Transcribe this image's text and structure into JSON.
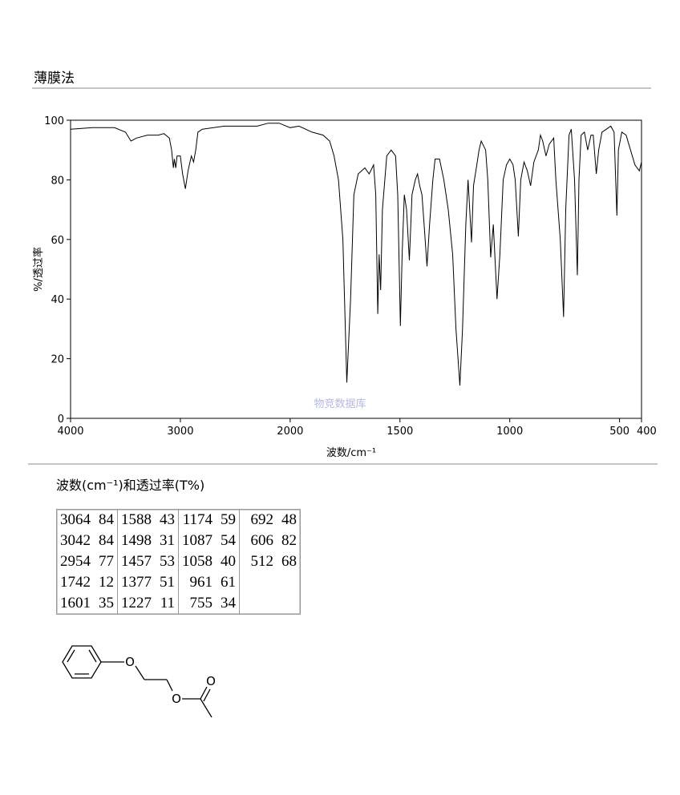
{
  "header": {
    "title": "薄膜法"
  },
  "chart_data": {
    "type": "line",
    "ylabel": "%/透过率",
    "xlabel": "波数/cm⁻¹",
    "watermark": "物竞数据库",
    "color": "#000000",
    "xlim": [
      4000,
      400
    ],
    "x_split": 2000,
    "xticks": [
      4000,
      3000,
      2000,
      1500,
      1000,
      500,
      400
    ],
    "ylim": [
      0,
      100
    ],
    "yticks": [
      0,
      20,
      40,
      60,
      80,
      100
    ],
    "x": [
      4000,
      3800,
      3600,
      3500,
      3450,
      3400,
      3300,
      3200,
      3150,
      3100,
      3080,
      3064,
      3055,
      3042,
      3030,
      3000,
      2980,
      2954,
      2930,
      2900,
      2880,
      2860,
      2840,
      2800,
      2600,
      2400,
      2300,
      2200,
      2100,
      2000,
      1960,
      1900,
      1850,
      1820,
      1800,
      1780,
      1760,
      1742,
      1725,
      1710,
      1690,
      1660,
      1640,
      1620,
      1610,
      1601,
      1595,
      1588,
      1580,
      1560,
      1540,
      1520,
      1510,
      1498,
      1490,
      1480,
      1470,
      1457,
      1445,
      1430,
      1420,
      1410,
      1400,
      1390,
      1377,
      1365,
      1350,
      1340,
      1320,
      1300,
      1280,
      1260,
      1245,
      1227,
      1215,
      1200,
      1190,
      1174,
      1165,
      1150,
      1140,
      1130,
      1110,
      1100,
      1087,
      1075,
      1058,
      1045,
      1030,
      1015,
      1000,
      985,
      975,
      961,
      950,
      935,
      920,
      905,
      890,
      870,
      860,
      850,
      835,
      820,
      800,
      790,
      770,
      755,
      745,
      730,
      720,
      705,
      692,
      685,
      675,
      660,
      645,
      630,
      620,
      606,
      595,
      580,
      560,
      540,
      525,
      512,
      505,
      490,
      470,
      450,
      430,
      410,
      400
    ],
    "values": [
      97,
      97.5,
      97.5,
      96,
      93,
      94,
      95,
      95,
      95.5,
      94,
      90,
      84,
      87,
      84,
      88,
      88,
      82,
      77,
      83,
      88,
      86,
      90,
      96,
      97,
      98,
      98,
      98,
      99,
      99,
      97.5,
      98,
      96,
      95,
      93,
      88,
      80,
      60,
      12,
      40,
      75,
      82,
      84,
      82,
      85,
      75,
      35,
      55,
      43,
      70,
      88,
      90,
      88,
      75,
      31,
      55,
      75,
      70,
      53,
      75,
      80,
      82,
      78,
      75,
      65,
      51,
      65,
      80,
      87,
      87,
      80,
      70,
      55,
      30,
      11,
      30,
      65,
      80,
      59,
      78,
      85,
      90,
      93,
      90,
      80,
      54,
      65,
      40,
      55,
      80,
      85,
      87,
      85,
      80,
      61,
      80,
      86,
      83,
      78,
      86,
      90,
      95,
      93,
      88,
      92,
      94,
      80,
      60,
      34,
      70,
      95,
      97,
      80,
      48,
      80,
      95,
      96,
      90,
      95,
      95,
      82,
      90,
      96,
      97,
      98,
      96,
      68,
      90,
      96,
      95,
      90,
      85,
      83,
      86
    ]
  },
  "table": {
    "caption": "波数(cm⁻¹)和透过率(T%)",
    "columns": [
      [
        [
          3064,
          84
        ],
        [
          3042,
          84
        ],
        [
          2954,
          77
        ],
        [
          1742,
          12
        ],
        [
          1601,
          35
        ]
      ],
      [
        [
          1588,
          43
        ],
        [
          1498,
          31
        ],
        [
          1457,
          53
        ],
        [
          1377,
          51
        ],
        [
          1227,
          11
        ]
      ],
      [
        [
          1174,
          59
        ],
        [
          1087,
          54
        ],
        [
          1058,
          40
        ],
        [
          961,
          61
        ],
        [
          755,
          34
        ]
      ],
      [
        [
          692,
          48
        ],
        [
          606,
          82
        ],
        [
          512,
          68
        ]
      ]
    ]
  },
  "structure": {
    "atoms": [
      "O",
      "O",
      "O"
    ]
  }
}
